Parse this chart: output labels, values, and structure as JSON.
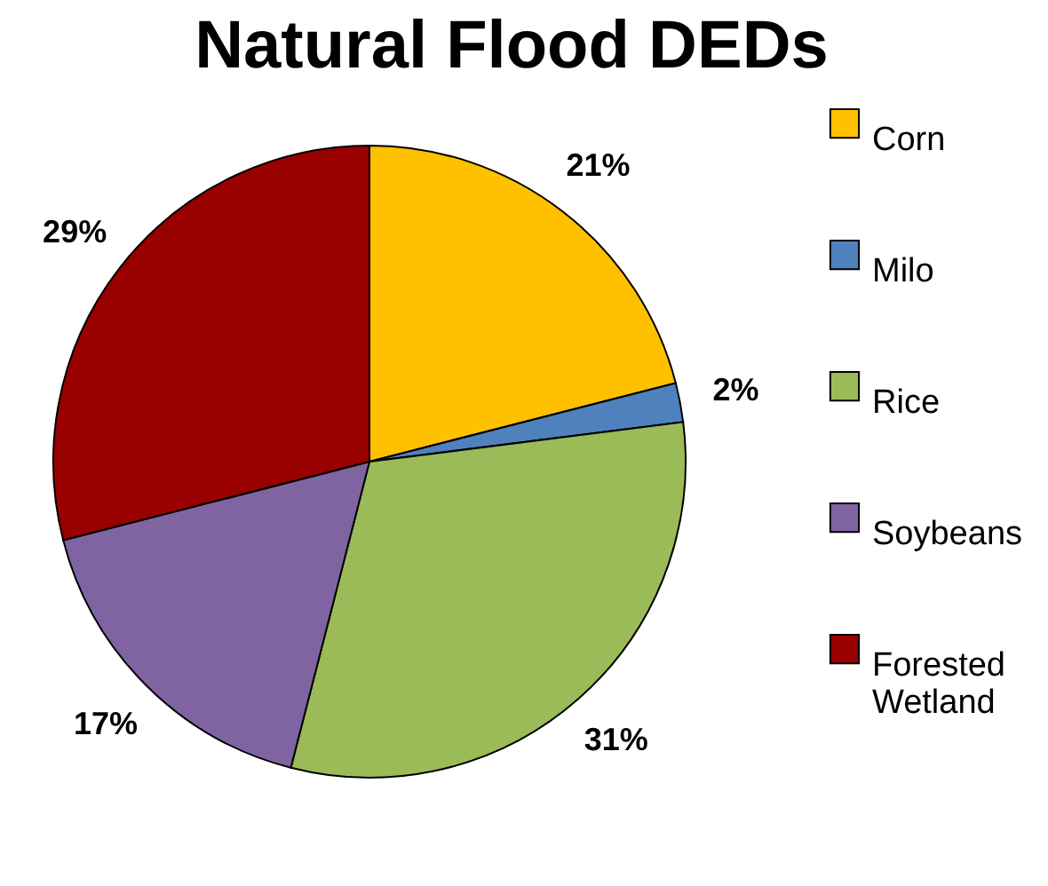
{
  "chart_data": {
    "type": "pie",
    "title": "Natural Flood DEDs",
    "categories": [
      "Corn",
      "Milo",
      "Rice",
      "Soybeans",
      "Forested Wetland"
    ],
    "values": [
      21,
      2,
      31,
      17,
      29
    ],
    "colors": [
      "#ffc000",
      "#4f81bd",
      "#9bbb59",
      "#8064a2",
      "#990000"
    ],
    "value_labels": [
      "21%",
      "2%",
      "31%",
      "17%",
      "29%"
    ],
    "legend": "right"
  }
}
